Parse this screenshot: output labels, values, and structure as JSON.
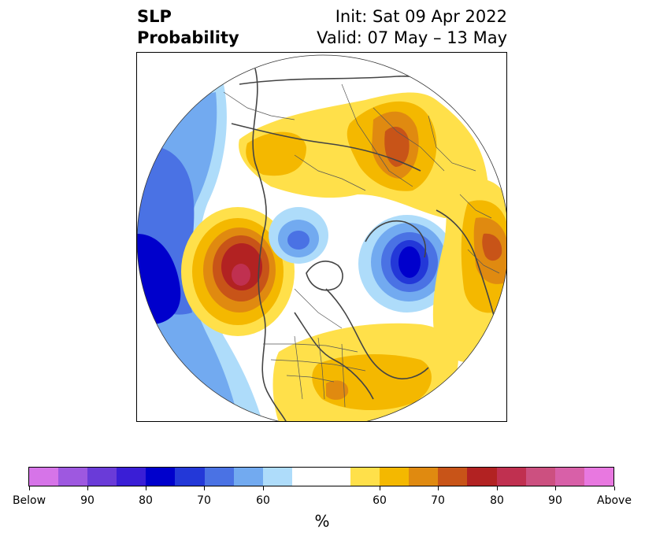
{
  "title": {
    "left_line1": "SLP",
    "left_line2": "Probability",
    "right_line1": "Init: Sat 09 Apr 2022",
    "right_line2": "Valid: 07 May – 13 May"
  },
  "colorbar": {
    "unit": "%",
    "tick_labels": [
      "Below",
      "90",
      "80",
      "70",
      "60",
      "60",
      "70",
      "80",
      "90",
      "Above"
    ],
    "colors": [
      "#d674e8",
      "#9e58e0",
      "#6a3bd8",
      "#3a1ed6",
      "#0000cc",
      "#2338d8",
      "#4a72e4",
      "#72aaf0",
      "#aedcfa",
      "#ffffff",
      "#ffffff",
      "#ffe04a",
      "#f4b800",
      "#e08a10",
      "#c85418",
      "#b22222",
      "#c03050",
      "#cc5080",
      "#d860a8",
      "#e878e0"
    ]
  },
  "map": {
    "projection": "north-polar-stereographic",
    "features": [
      "coastlines",
      "country-borders",
      "us-state-borders"
    ],
    "anomalies": [
      {
        "region": "North Pacific / Gulf of Alaska",
        "sign": "above",
        "peak_percent": 90
      },
      {
        "region": "Greenland / North Atlantic",
        "sign": "below",
        "peak_percent": 80
      },
      {
        "region": "Arctic north of Alaska",
        "sign": "below",
        "peak_percent": 70
      },
      {
        "region": "Western Pacific",
        "sign": "below",
        "peak_percent": 80
      },
      {
        "region": "Western Russia / Scandinavia",
        "sign": "above",
        "peak_percent": 80
      },
      {
        "region": "Central Asia",
        "sign": "above",
        "peak_percent": 70
      },
      {
        "region": "Eastern North America / Atlantic",
        "sign": "above",
        "peak_percent": 60
      }
    ]
  }
}
